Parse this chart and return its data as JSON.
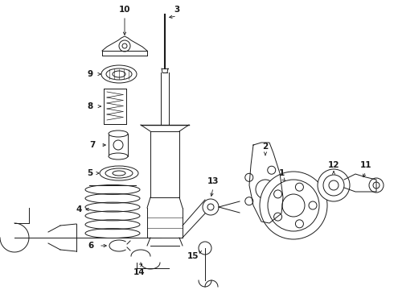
{
  "bg_color": "#ffffff",
  "line_color": "#1a1a1a",
  "figsize": [
    4.9,
    3.6
  ],
  "dpi": 100,
  "lw": 0.7,
  "label_fontsize": 7.5,
  "arrow_lw": 0.6
}
